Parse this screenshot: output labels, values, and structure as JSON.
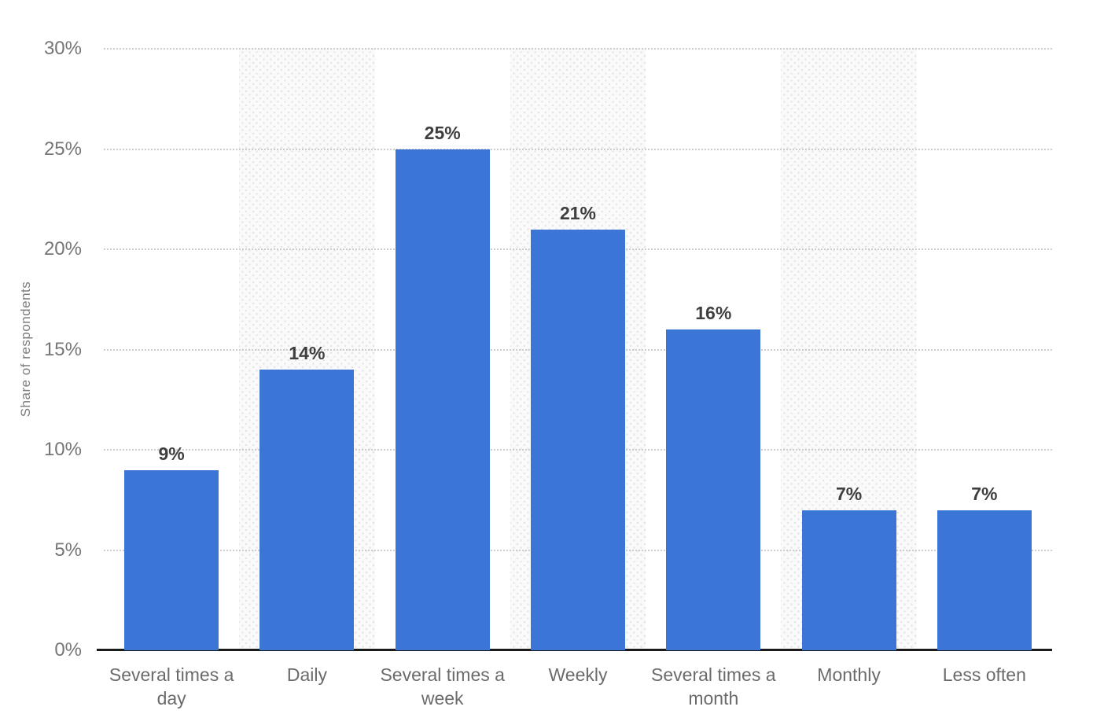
{
  "chart_data": {
    "type": "bar",
    "categories": [
      "Several times a day",
      "Daily",
      "Several times a week",
      "Weekly",
      "Several times a month",
      "Monthly",
      "Less often"
    ],
    "values": [
      9,
      14,
      25,
      21,
      16,
      7,
      7
    ],
    "value_labels": [
      "9%",
      "14%",
      "25%",
      "21%",
      "16%",
      "7%",
      "7%"
    ],
    "ylabel": "Share of respondents",
    "ylim": [
      0,
      30
    ],
    "yticks": [
      0,
      5,
      10,
      15,
      20,
      25,
      30
    ],
    "ytick_labels": [
      "0%",
      "5%",
      "10%",
      "15%",
      "20%",
      "25%",
      "30%"
    ],
    "grid": "horizontal-dotted",
    "legend": "none",
    "bar_color": "#3B76D6",
    "striped_columns": [
      2,
      4,
      6
    ],
    "stripe_bg_color": "#FAFAFA",
    "stripe_dot_color": "#E3E3E3",
    "gridline_color": "#CDCDCD",
    "axis_color": "#1A1A1A",
    "value_label_color": "#3F3F3F",
    "tick_label_color": "#767676",
    "category_label_color": "#6B6B6B"
  }
}
